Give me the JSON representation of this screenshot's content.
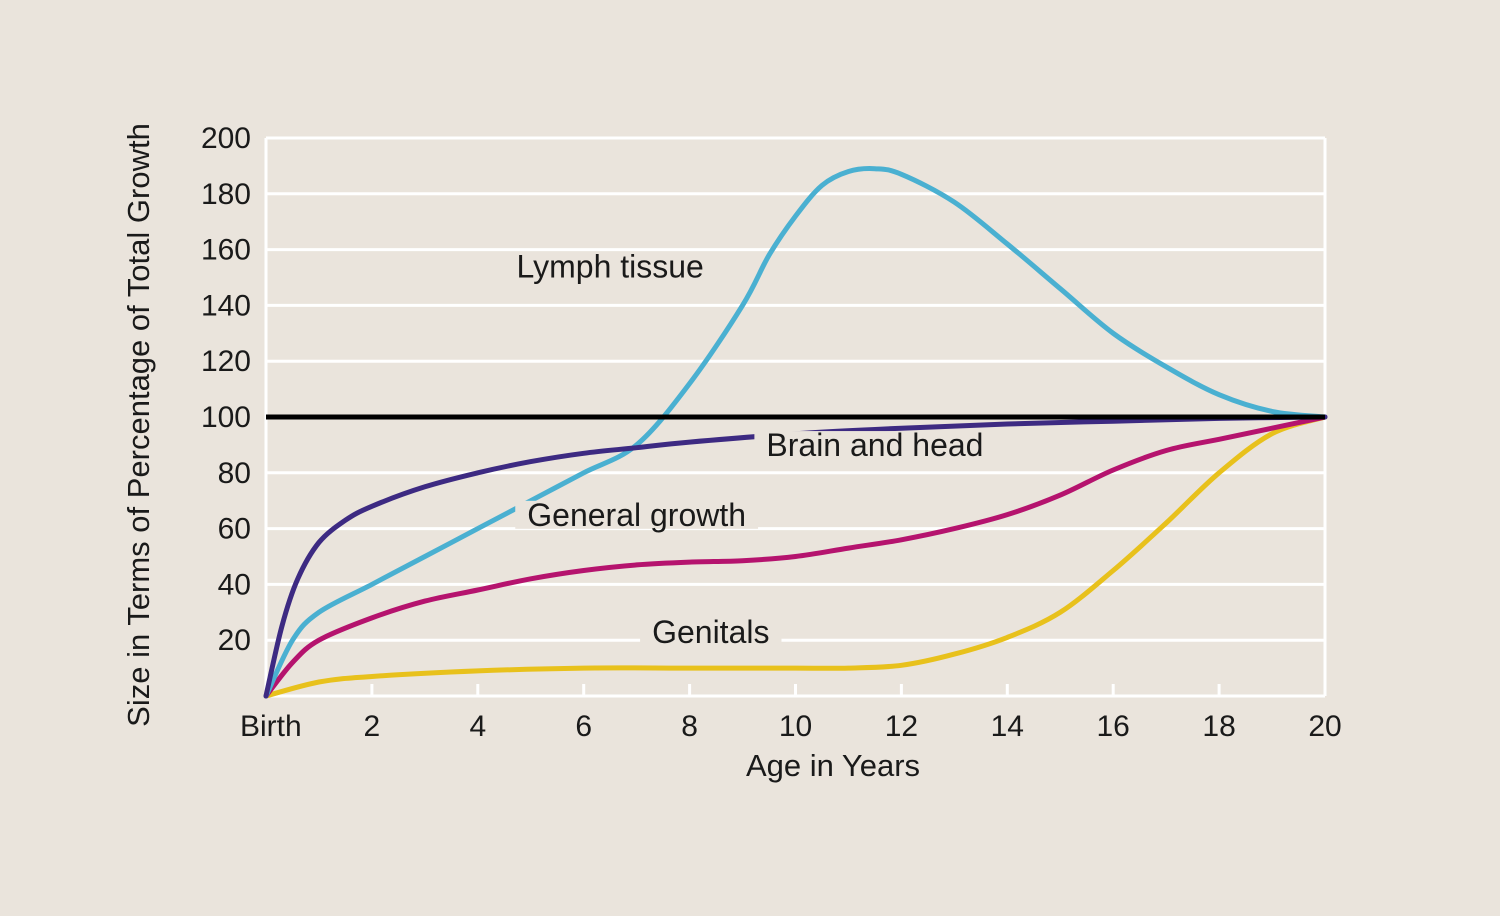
{
  "colors": {
    "background": "#eae4dc",
    "grid": "#ffffff",
    "reference_line": "#000000",
    "lymph": "#4ab0d1",
    "brain": "#3d2a82",
    "general": "#b5136e",
    "genitals": "#e8c11c"
  },
  "chart_data": {
    "type": "line",
    "title": "",
    "xlabel": "Age in Years",
    "ylabel": "Size in Terms of Percentage of Total Growth",
    "xlim": [
      0,
      20
    ],
    "ylim": [
      0,
      200
    ],
    "grid": true,
    "legend": "none",
    "x_ticks": [
      {
        "value": 0,
        "label": "Birth"
      },
      {
        "value": 2,
        "label": "2"
      },
      {
        "value": 4,
        "label": "4"
      },
      {
        "value": 6,
        "label": "6"
      },
      {
        "value": 8,
        "label": "8"
      },
      {
        "value": 10,
        "label": "10"
      },
      {
        "value": 12,
        "label": "12"
      },
      {
        "value": 14,
        "label": "14"
      },
      {
        "value": 16,
        "label": "16"
      },
      {
        "value": 18,
        "label": "18"
      },
      {
        "value": 20,
        "label": "20"
      }
    ],
    "y_ticks": [
      {
        "value": 20,
        "label": "20"
      },
      {
        "value": 40,
        "label": "40"
      },
      {
        "value": 60,
        "label": "60"
      },
      {
        "value": 80,
        "label": "80"
      },
      {
        "value": 100,
        "label": "100"
      },
      {
        "value": 120,
        "label": "120"
      },
      {
        "value": 140,
        "label": "140"
      },
      {
        "value": 160,
        "label": "160"
      },
      {
        "value": 180,
        "label": "180"
      },
      {
        "value": 200,
        "label": "200"
      }
    ],
    "reference_line": {
      "y": 100
    },
    "series": [
      {
        "key": "lymph",
        "name": "Lymph tissue",
        "label_at": {
          "x": 6.5,
          "y": 150
        },
        "points": [
          [
            0,
            0
          ],
          [
            0.5,
            20
          ],
          [
            1,
            30
          ],
          [
            2,
            40
          ],
          [
            3,
            50
          ],
          [
            4,
            60
          ],
          [
            5,
            70
          ],
          [
            6,
            80
          ],
          [
            7,
            90
          ],
          [
            8,
            112
          ],
          [
            9,
            140
          ],
          [
            9.5,
            158
          ],
          [
            10,
            172
          ],
          [
            10.5,
            183
          ],
          [
            11,
            188
          ],
          [
            11.5,
            189
          ],
          [
            12,
            187
          ],
          [
            13,
            177
          ],
          [
            14,
            162
          ],
          [
            15,
            146
          ],
          [
            16,
            130
          ],
          [
            17,
            118
          ],
          [
            18,
            108
          ],
          [
            19,
            102
          ],
          [
            20,
            100
          ]
        ]
      },
      {
        "key": "brain",
        "name": "Brain and head",
        "label_at": {
          "x": 11.5,
          "y": 86
        },
        "points": [
          [
            0,
            0
          ],
          [
            0.3,
            25
          ],
          [
            0.6,
            42
          ],
          [
            1,
            55
          ],
          [
            1.5,
            63
          ],
          [
            2,
            68
          ],
          [
            3,
            75
          ],
          [
            4,
            80
          ],
          [
            5,
            84
          ],
          [
            6,
            87
          ],
          [
            7,
            89
          ],
          [
            8,
            91
          ],
          [
            10,
            94
          ],
          [
            12,
            96
          ],
          [
            14,
            97.5
          ],
          [
            16,
            98.5
          ],
          [
            18,
            99.5
          ],
          [
            20,
            100
          ]
        ]
      },
      {
        "key": "general",
        "name": "General growth",
        "label_at": {
          "x": 7,
          "y": 61
        },
        "points": [
          [
            0,
            0
          ],
          [
            0.5,
            12
          ],
          [
            1,
            20
          ],
          [
            2,
            28
          ],
          [
            3,
            34
          ],
          [
            4,
            38
          ],
          [
            5,
            42
          ],
          [
            6,
            45
          ],
          [
            7,
            47
          ],
          [
            8,
            48
          ],
          [
            9,
            48.5
          ],
          [
            10,
            50
          ],
          [
            11,
            53
          ],
          [
            12,
            56
          ],
          [
            13,
            60
          ],
          [
            14,
            65
          ],
          [
            15,
            72
          ],
          [
            16,
            81
          ],
          [
            17,
            88
          ],
          [
            18,
            92
          ],
          [
            19,
            96
          ],
          [
            20,
            100
          ]
        ]
      },
      {
        "key": "genitals",
        "name": "Genitals",
        "label_at": {
          "x": 8.4,
          "y": 19
        },
        "points": [
          [
            0,
            0
          ],
          [
            1,
            5
          ],
          [
            2,
            7
          ],
          [
            4,
            9
          ],
          [
            6,
            10
          ],
          [
            8,
            10
          ],
          [
            10,
            10
          ],
          [
            11,
            10
          ],
          [
            12,
            11
          ],
          [
            13,
            15
          ],
          [
            14,
            21
          ],
          [
            15,
            30
          ],
          [
            16,
            45
          ],
          [
            17,
            62
          ],
          [
            18,
            80
          ],
          [
            19,
            94
          ],
          [
            20,
            100
          ]
        ]
      }
    ]
  }
}
